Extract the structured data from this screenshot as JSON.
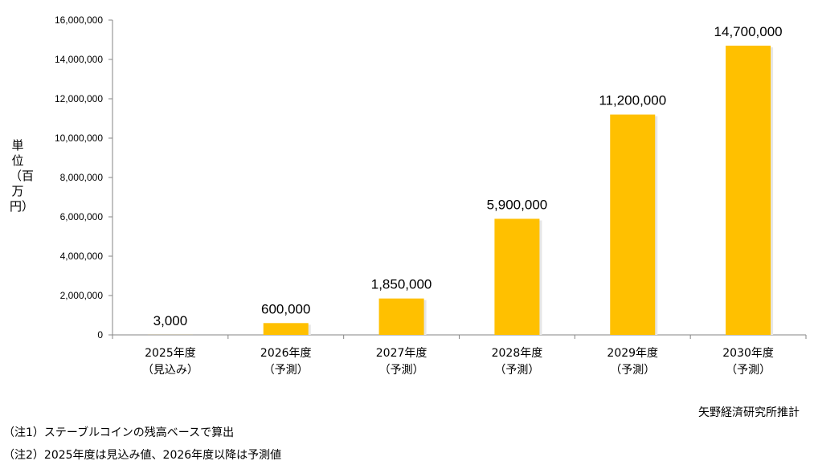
{
  "chart_data": {
    "type": "bar",
    "categories": [
      "2025年度\n（見込み）",
      "2026年度\n（予測）",
      "2027年度\n（予測）",
      "2028年度\n（予測）",
      "2029年度\n（予測）",
      "2030年度\n（予測）"
    ],
    "values": [
      3000,
      600000,
      1850000,
      5900000,
      11200000,
      14700000
    ],
    "data_labels": [
      "3,000",
      "600,000",
      "1,850,000",
      "5,900,000",
      "11,200,000",
      "14,700,000"
    ],
    "ylabel": "単位（百万円）",
    "ylim": [
      0,
      16000000
    ],
    "yticks": [
      0,
      2000000,
      4000000,
      6000000,
      8000000,
      10000000,
      12000000,
      14000000,
      16000000
    ],
    "ytick_labels": [
      "0",
      "2,000,000",
      "4,000,000",
      "6,000,000",
      "8,000,000",
      "10,000,000",
      "12,000,000",
      "14,000,000",
      "16,000,000"
    ],
    "grid": false,
    "bar_color": "#FFC000"
  },
  "source": "矢野経済研究所推計",
  "notes": [
    "（注1）ステーブルコインの残高ベースで算出",
    "（注2）2025年度は見込み値、2026年度以降は予測値"
  ]
}
